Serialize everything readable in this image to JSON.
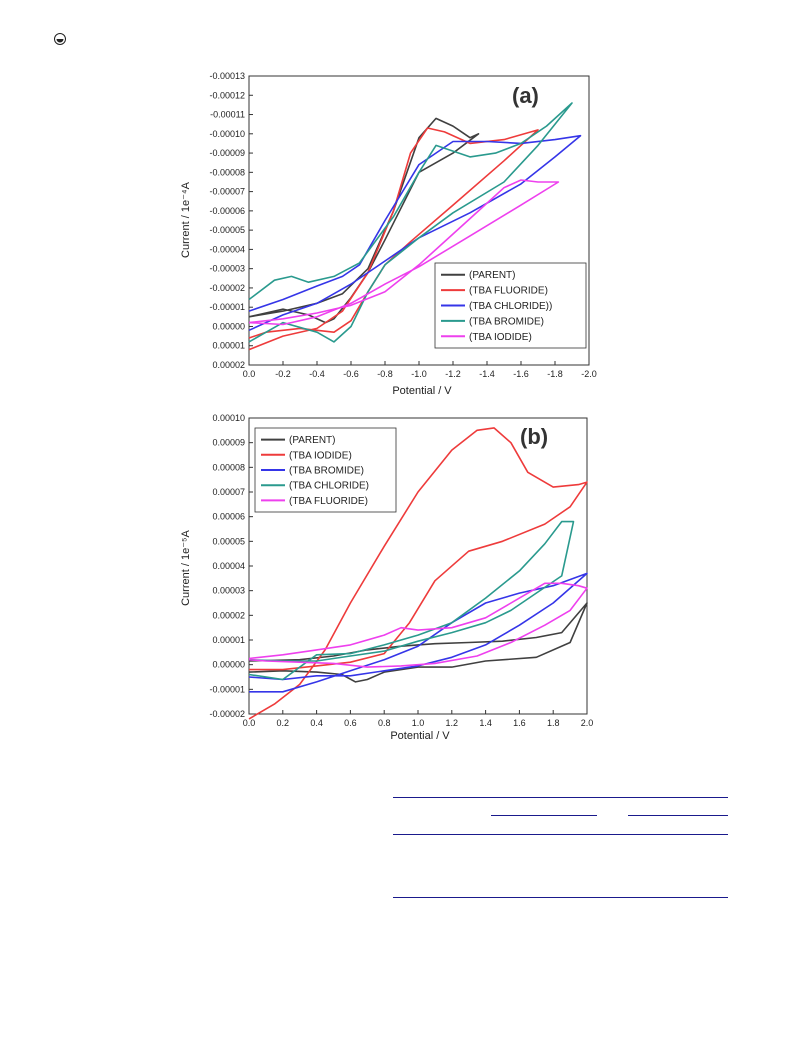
{
  "page": {
    "corner_icon": "circle-dot-icon"
  },
  "chart_data": [
    {
      "type": "line",
      "panel_label": "(a)",
      "xlabel": "Potential / V",
      "ylabel": "Current / 1e⁻⁴A",
      "xlim": [
        0.0,
        -2.0
      ],
      "ylim": [
        2e-05,
        -0.00013
      ],
      "x_ticks": [
        "0.0",
        "-0.2",
        "-0.4",
        "-0.6",
        "-0.8",
        "-1.0",
        "-1.2",
        "-1.4",
        "-1.6",
        "-1.8",
        "-2.0"
      ],
      "y_ticks": [
        "-0.00013",
        "-0.00012",
        "-0.00011",
        "-0.00010",
        "-0.00009",
        "-0.00008",
        "-0.00007",
        "-0.00006",
        "-0.00005",
        "-0.00004",
        "-0.00003",
        "-0.00002",
        "-0.00001",
        "0.00000",
        "0.00001",
        "0.00002"
      ],
      "legend_position": "bottom-right",
      "series": [
        {
          "name": "(PARENT)",
          "color": "#404040",
          "points": [
            [
              0.0,
              -5e-06
            ],
            [
              -0.2,
              -8e-06
            ],
            [
              -0.4,
              -1.2e-05
            ],
            [
              -0.55,
              -1.7e-05
            ],
            [
              -0.7,
              -3e-05
            ],
            [
              -0.85,
              -6e-05
            ],
            [
              -1.0,
              -9.8e-05
            ],
            [
              -1.1,
              -0.000108
            ],
            [
              -1.2,
              -0.000104
            ],
            [
              -1.3,
              -9.8e-05
            ],
            [
              -1.35,
              -0.0001
            ],
            [
              -1.2,
              -9e-05
            ],
            [
              -1.0,
              -8e-05
            ],
            [
              -0.8,
              -4.5e-05
            ],
            [
              -0.7,
              -2.8e-05
            ],
            [
              -0.6,
              -1.5e-05
            ],
            [
              -0.5,
              -4e-06
            ],
            [
              -0.45,
              -2e-06
            ],
            [
              -0.35,
              -6e-06
            ],
            [
              -0.2,
              -9e-06
            ],
            [
              0.0,
              -5e-06
            ]
          ]
        },
        {
          "name": "(TBA FLUORIDE)",
          "color": "#ee3b3b",
          "points": [
            [
              0.0,
              1.2e-05
            ],
            [
              -0.2,
              5e-06
            ],
            [
              -0.4,
              1e-06
            ],
            [
              -0.55,
              -8e-06
            ],
            [
              -0.7,
              -2.8e-05
            ],
            [
              -0.85,
              -6e-05
            ],
            [
              -0.95,
              -9e-05
            ],
            [
              -1.05,
              -0.000103
            ],
            [
              -1.15,
              -0.000101
            ],
            [
              -1.3,
              -9.5e-05
            ],
            [
              -1.5,
              -9.7e-05
            ],
            [
              -1.7,
              -0.000102
            ],
            [
              -1.5,
              -8.6e-05
            ],
            [
              -1.2,
              -6.3e-05
            ],
            [
              -0.95,
              -4.4e-05
            ],
            [
              -0.8,
              -3.2e-05
            ],
            [
              -0.7,
              -1.8e-05
            ],
            [
              -0.6,
              -3e-06
            ],
            [
              -0.5,
              3e-06
            ],
            [
              -0.3,
              1e-06
            ],
            [
              -0.1,
              3e-06
            ],
            [
              0.0,
              6e-06
            ]
          ]
        },
        {
          "name": "(TBA CHLORIDE))",
          "color": "#3535e8",
          "points": [
            [
              0.0,
              -8e-06
            ],
            [
              -0.2,
              -1.4e-05
            ],
            [
              -0.4,
              -2.1e-05
            ],
            [
              -0.55,
              -2.6e-05
            ],
            [
              -0.65,
              -3.2e-05
            ],
            [
              -0.8,
              -5.5e-05
            ],
            [
              -1.0,
              -8.4e-05
            ],
            [
              -1.2,
              -9.6e-05
            ],
            [
              -1.4,
              -9.6e-05
            ],
            [
              -1.6,
              -9.5e-05
            ],
            [
              -1.8,
              -9.7e-05
            ],
            [
              -1.95,
              -9.9e-05
            ],
            [
              -1.8,
              -8.8e-05
            ],
            [
              -1.6,
              -7.4e-05
            ],
            [
              -1.3,
              -5.9e-05
            ],
            [
              -1.0,
              -4.6e-05
            ],
            [
              -0.8,
              -3.4e-05
            ],
            [
              -0.6,
              -2.2e-05
            ],
            [
              -0.4,
              -1.2e-05
            ],
            [
              -0.2,
              -6e-06
            ],
            [
              0.0,
              2e-06
            ]
          ]
        },
        {
          "name": "(TBA BROMIDE)",
          "color": "#2a9a8e",
          "points": [
            [
              0.0,
              -1.4e-05
            ],
            [
              -0.15,
              -2.4e-05
            ],
            [
              -0.25,
              -2.6e-05
            ],
            [
              -0.35,
              -2.3e-05
            ],
            [
              -0.5,
              -2.6e-05
            ],
            [
              -0.65,
              -3.3e-05
            ],
            [
              -0.85,
              -5.7e-05
            ],
            [
              -1.0,
              -8e-05
            ],
            [
              -1.1,
              -9.4e-05
            ],
            [
              -1.2,
              -9.1e-05
            ],
            [
              -1.3,
              -8.8e-05
            ],
            [
              -1.45,
              -9e-05
            ],
            [
              -1.6,
              -9.5e-05
            ],
            [
              -1.75,
              -0.000104
            ],
            [
              -1.9,
              -0.000116
            ],
            [
              -1.7,
              -9.4e-05
            ],
            [
              -1.5,
              -7.5e-05
            ],
            [
              -1.2,
              -5.9e-05
            ],
            [
              -1.0,
              -4.6e-05
            ],
            [
              -0.8,
              -3.2e-05
            ],
            [
              -0.7,
              -1.8e-05
            ],
            [
              -0.6,
              0.0
            ],
            [
              -0.5,
              8e-06
            ],
            [
              -0.4,
              3e-06
            ],
            [
              -0.2,
              -2e-06
            ],
            [
              0.0,
              8e-06
            ]
          ]
        },
        {
          "name": "(TBA IODIDE)",
          "color": "#ee40ee",
          "points": [
            [
              0.0,
              -2e-06
            ],
            [
              -0.2,
              -4e-06
            ],
            [
              -0.4,
              -7e-06
            ],
            [
              -0.6,
              -1.1e-05
            ],
            [
              -0.8,
              -1.8e-05
            ],
            [
              -1.0,
              -3.2e-05
            ],
            [
              -1.2,
              -4.8e-05
            ],
            [
              -1.35,
              -6e-05
            ],
            [
              -1.5,
              -7.2e-05
            ],
            [
              -1.6,
              -7.6e-05
            ],
            [
              -1.7,
              -7.5e-05
            ],
            [
              -1.82,
              -7.5e-05
            ],
            [
              -1.6,
              -6.3e-05
            ],
            [
              -1.3,
              -4.7e-05
            ],
            [
              -1.0,
              -3.1e-05
            ],
            [
              -0.8,
              -2.2e-05
            ],
            [
              -0.6,
              -1.2e-05
            ],
            [
              -0.4,
              -5e-06
            ],
            [
              -0.2,
              -1e-06
            ],
            [
              0.0,
              -2e-06
            ]
          ]
        }
      ]
    },
    {
      "type": "line",
      "panel_label": "(b)",
      "xlabel": "Potential / V",
      "ylabel": "Current / 1e⁻⁵A",
      "xlim": [
        0.0,
        2.0
      ],
      "ylim": [
        -2e-05,
        0.0001
      ],
      "x_ticks": [
        "0.0",
        "0.2",
        "0.4",
        "0.6",
        "0.8",
        "1.0",
        "1.2",
        "1.4",
        "1.6",
        "1.8",
        "2.0"
      ],
      "y_ticks": [
        "0.00010",
        "0.00009",
        "0.00008",
        "0.00007",
        "0.00006",
        "0.00005",
        "0.00004",
        "0.00003",
        "0.00002",
        "0.00001",
        "0.00000",
        "-0.00001",
        "-0.00002"
      ],
      "legend_position": "top-left",
      "series": [
        {
          "name": "(PARENT)",
          "color": "#404040",
          "points": [
            [
              0.0,
              1.5e-06
            ],
            [
              0.3,
              2e-06
            ],
            [
              0.5,
              3.5e-06
            ],
            [
              0.7,
              6e-06
            ],
            [
              0.9,
              7.5e-06
            ],
            [
              1.1,
              8.5e-06
            ],
            [
              1.3,
              9e-06
            ],
            [
              1.5,
              9.5e-06
            ],
            [
              1.7,
              1.1e-05
            ],
            [
              1.85,
              1.3e-05
            ],
            [
              2.0,
              2.5e-05
            ],
            [
              1.9,
              9e-06
            ],
            [
              1.7,
              3e-06
            ],
            [
              1.4,
              1.5e-06
            ],
            [
              1.2,
              -1e-06
            ],
            [
              1.0,
              -1e-06
            ],
            [
              0.8,
              -3e-06
            ],
            [
              0.7,
              -6e-06
            ],
            [
              0.63,
              -7e-06
            ],
            [
              0.55,
              -4e-06
            ],
            [
              0.4,
              -3e-06
            ],
            [
              0.2,
              -2.5e-06
            ],
            [
              0.0,
              -3e-06
            ]
          ]
        },
        {
          "name": "(TBA IODIDE)",
          "color": "#ee3b3b",
          "points": [
            [
              0.0,
              -2.2e-05
            ],
            [
              0.15,
              -1.6e-05
            ],
            [
              0.3,
              -8e-06
            ],
            [
              0.45,
              6e-06
            ],
            [
              0.6,
              2.5e-05
            ],
            [
              0.8,
              4.8e-05
            ],
            [
              1.0,
              7e-05
            ],
            [
              1.2,
              8.7e-05
            ],
            [
              1.35,
              9.5e-05
            ],
            [
              1.45,
              9.6e-05
            ],
            [
              1.55,
              9e-05
            ],
            [
              1.65,
              7.8e-05
            ],
            [
              1.8,
              7.2e-05
            ],
            [
              1.95,
              7.3e-05
            ],
            [
              2.0,
              7.4e-05
            ],
            [
              1.9,
              6.4e-05
            ],
            [
              1.75,
              5.7e-05
            ],
            [
              1.5,
              5e-05
            ],
            [
              1.3,
              4.6e-05
            ],
            [
              1.1,
              3.4e-05
            ],
            [
              0.95,
              1.7e-05
            ],
            [
              0.8,
              4.5e-06
            ],
            [
              0.6,
              1e-06
            ],
            [
              0.4,
              -5e-07
            ],
            [
              0.2,
              -2e-06
            ],
            [
              0.0,
              -2e-06
            ]
          ]
        },
        {
          "name": "(TBA BROMIDE)",
          "color": "#3535e8",
          "points": [
            [
              0.0,
              -1.1e-05
            ],
            [
              0.2,
              -1.1e-05
            ],
            [
              0.4,
              -7e-06
            ],
            [
              0.6,
              -2.5e-06
            ],
            [
              0.8,
              2e-06
            ],
            [
              1.0,
              7.5e-06
            ],
            [
              1.2,
              1.7e-05
            ],
            [
              1.4,
              2.5e-05
            ],
            [
              1.6,
              2.9e-05
            ],
            [
              1.8,
              3.2e-05
            ],
            [
              2.0,
              3.7e-05
            ],
            [
              1.8,
              2.5e-05
            ],
            [
              1.6,
              1.6e-05
            ],
            [
              1.4,
              8e-06
            ],
            [
              1.2,
              3e-06
            ],
            [
              1.0,
              -5e-07
            ],
            [
              0.8,
              -2.5e-06
            ],
            [
              0.6,
              -4.5e-06
            ],
            [
              0.4,
              -4.5e-06
            ],
            [
              0.2,
              -6e-06
            ],
            [
              0.0,
              -5e-06
            ]
          ]
        },
        {
          "name": "(TBA CHLORIDE)",
          "color": "#2a9a8e",
          "points": [
            [
              0.0,
              -4e-06
            ],
            [
              0.2,
              -6e-06
            ],
            [
              0.4,
              4e-06
            ],
            [
              0.6,
              4.5e-06
            ],
            [
              0.8,
              8e-06
            ],
            [
              1.0,
              1.2e-05
            ],
            [
              1.2,
              1.7e-05
            ],
            [
              1.4,
              2.7e-05
            ],
            [
              1.6,
              3.8e-05
            ],
            [
              1.75,
              4.9e-05
            ],
            [
              1.85,
              5.8e-05
            ],
            [
              1.92,
              5.8e-05
            ],
            [
              1.85,
              3.6e-05
            ],
            [
              1.7,
              2.9e-05
            ],
            [
              1.55,
              2.2e-05
            ],
            [
              1.4,
              1.7e-05
            ],
            [
              1.2,
              1.3e-05
            ],
            [
              1.0,
              9.5e-06
            ],
            [
              0.8,
              5.5e-06
            ],
            [
              0.6,
              3.5e-06
            ],
            [
              0.4,
              1.5e-06
            ],
            [
              0.2,
              1.5e-06
            ],
            [
              0.0,
              2e-06
            ]
          ]
        },
        {
          "name": "(TBA FLUORIDE)",
          "color": "#ee40ee",
          "points": [
            [
              0.0,
              2.5e-06
            ],
            [
              0.2,
              4e-06
            ],
            [
              0.4,
              6e-06
            ],
            [
              0.6,
              8e-06
            ],
            [
              0.8,
              1.2e-05
            ],
            [
              0.9,
              1.5e-05
            ],
            [
              1.0,
              1.4e-05
            ],
            [
              1.2,
              1.5e-05
            ],
            [
              1.4,
              1.9e-05
            ],
            [
              1.6,
              2.7e-05
            ],
            [
              1.75,
              3.3e-05
            ],
            [
              1.85,
              3.3e-05
            ],
            [
              1.95,
              3.2e-05
            ],
            [
              2.0,
              3.1e-05
            ],
            [
              1.9,
              2.2e-05
            ],
            [
              1.75,
              1.6e-05
            ],
            [
              1.55,
              9e-06
            ],
            [
              1.35,
              3.5e-06
            ],
            [
              1.1,
              5e-07
            ],
            [
              0.9,
              -5e-07
            ],
            [
              0.7,
              -1e-06
            ],
            [
              0.5,
              5e-07
            ],
            [
              0.3,
              1e-06
            ],
            [
              0.1,
              1.5e-06
            ],
            [
              0.0,
              2e-06
            ]
          ]
        }
      ]
    }
  ]
}
